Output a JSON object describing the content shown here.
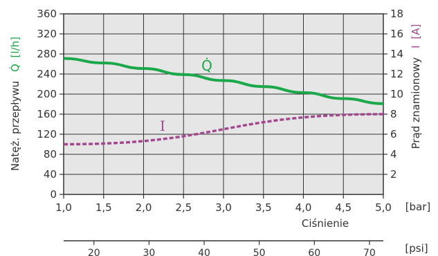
{
  "chart_data": {
    "type": "line",
    "xlabel": "Ciśnienie",
    "x_unit": "[bar]",
    "xlim": [
      1.0,
      5.0
    ],
    "x_ticks": [
      "1,0",
      "1,5",
      "2,0",
      "2,5",
      "3,0",
      "3,5",
      "4,0",
      "4,5",
      "5,0"
    ],
    "x_tick_values": [
      1.0,
      1.5,
      2.0,
      2.5,
      3.0,
      3.5,
      4.0,
      4.5,
      5.0
    ],
    "secondary_x_unit": "[psi]",
    "secondary_x_ticks": [
      "20",
      "30",
      "40",
      "50",
      "60",
      "70"
    ],
    "secondary_x_tick_values": [
      20,
      30,
      40,
      50,
      60,
      70
    ],
    "ylabel_left": "Natęż. przepływu",
    "ylabel_left_symbol": "Q̇",
    "ylabel_left_unit": "[l/h]",
    "ylim_left": [
      0,
      360
    ],
    "y_left_ticks": [
      "0",
      "40",
      "80",
      "120",
      "160",
      "200",
      "240",
      "280",
      "320",
      "360"
    ],
    "y_left_tick_values": [
      0,
      40,
      80,
      120,
      160,
      200,
      240,
      280,
      320,
      360
    ],
    "ylabel_right": "Prąd znamionowy",
    "ylabel_right_symbol": "I",
    "ylabel_right_unit": "[A]",
    "ylim_right": [
      0,
      18
    ],
    "y_right_ticks": [
      "2",
      "4",
      "6",
      "8",
      "10",
      "12",
      "14",
      "16",
      "18"
    ],
    "y_right_tick_values": [
      2,
      4,
      6,
      8,
      10,
      12,
      14,
      16,
      18
    ],
    "grid": true,
    "series": [
      {
        "name": "Q̇",
        "axis": "left",
        "color": "#1aa84a",
        "style": "solid",
        "x": [
          1.0,
          1.5,
          2.0,
          2.5,
          3.0,
          3.5,
          4.0,
          4.5,
          5.0
        ],
        "y": [
          271,
          262,
          251,
          239,
          227,
          215,
          203,
          191,
          181
        ]
      },
      {
        "name": "I",
        "axis": "right",
        "color": "#a3488f",
        "style": "dashed",
        "x": [
          1.0,
          5.0
        ],
        "y": [
          5.0,
          8.0
        ]
      }
    ]
  }
}
